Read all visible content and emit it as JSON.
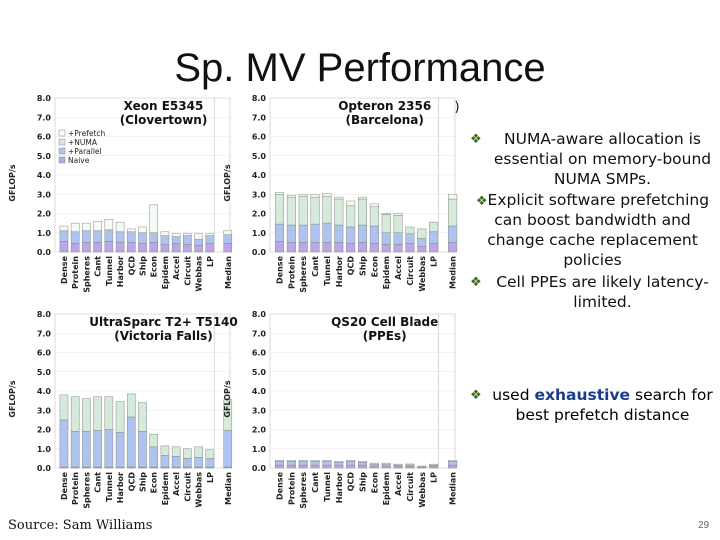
{
  "slide": {
    "title": "Sp. MV Performance",
    "subtitle_fragment": "ng)",
    "source": "Source: Sam Williams",
    "page_number": "29"
  },
  "bullets": {
    "b1": "NUMA-aware allocation is essential on memory-bound NUMA SMPs.",
    "b1_sub": "Explicit software prefetching can boost bandwidth and change cache replacement policies",
    "b2": "Cell PPEs are likely latency-limited.",
    "b3_pre": "used ",
    "b3_bold": "exhaustive",
    "b3_post": " search for best prefetch distance"
  },
  "colors": {
    "naive": "#b9a7e6",
    "parallel": "#aec4ee",
    "numa": "#d6eadb",
    "prefetch": "#f4fbf4",
    "bullet_mark": "#3d6b14",
    "exhaustive": "#1a3c8c"
  },
  "chart_data": [
    {
      "type": "bar",
      "stacked": true,
      "title": "Xeon E5345",
      "subtitle": "(Clovertown)",
      "ylabel": "GFLOP/s",
      "ylim": [
        0,
        8
      ],
      "yticks": [
        "0.0",
        "1.0",
        "2.0",
        "3.0",
        "4.0",
        "5.0",
        "6.0",
        "7.0",
        "8.0"
      ],
      "legend": [
        "+Prefetch",
        "+NUMA",
        "+Parallel",
        "Naive"
      ],
      "categories": [
        "Dense",
        "Protein",
        "Spheres",
        "Cant",
        "Tunnel",
        "Harbor",
        "QCD",
        "Ship",
        "Econ",
        "Epidem",
        "Accel",
        "Circuit",
        "Webbas",
        "LP",
        "Median"
      ],
      "series": [
        {
          "name": "Naive",
          "values": [
            0.55,
            0.45,
            0.5,
            0.5,
            0.55,
            0.5,
            0.5,
            0.45,
            0.5,
            0.4,
            0.45,
            0.4,
            0.35,
            0.45,
            0.45
          ]
        },
        {
          "name": "+Parallel",
          "values": [
            0.55,
            0.6,
            0.6,
            0.6,
            0.6,
            0.55,
            0.55,
            0.55,
            0.5,
            0.45,
            0.35,
            0.45,
            0.3,
            0.4,
            0.45
          ]
        },
        {
          "name": "+NUMA",
          "values": [
            0.0,
            0.0,
            0.0,
            0.0,
            0.0,
            0.0,
            0.0,
            0.0,
            0.0,
            0.0,
            0.0,
            0.0,
            0.0,
            0.0,
            0.0
          ]
        },
        {
          "name": "+Prefetch",
          "values": [
            0.25,
            0.45,
            0.4,
            0.5,
            0.55,
            0.5,
            0.15,
            0.3,
            1.45,
            0.2,
            0.15,
            0.1,
            0.3,
            0.1,
            0.2
          ]
        }
      ]
    },
    {
      "type": "bar",
      "stacked": true,
      "title": "Opteron 2356",
      "subtitle": "(Barcelona)",
      "ylabel": "GFLOP/s",
      "ylim": [
        0,
        8
      ],
      "yticks": [
        "0.0",
        "1.0",
        "2.0",
        "3.0",
        "4.0",
        "5.0",
        "6.0",
        "7.0",
        "8.0"
      ],
      "categories": [
        "Dense",
        "Protein",
        "Spheres",
        "Cant",
        "Tunnel",
        "Harbor",
        "QCD",
        "Ship",
        "Econ",
        "Epidem",
        "Accel",
        "Circuit",
        "Webbas",
        "LP",
        "Median"
      ],
      "series": [
        {
          "name": "Naive",
          "values": [
            0.55,
            0.5,
            0.5,
            0.5,
            0.5,
            0.5,
            0.45,
            0.5,
            0.45,
            0.4,
            0.4,
            0.45,
            0.3,
            0.45,
            0.5
          ]
        },
        {
          "name": "+Parallel",
          "values": [
            0.9,
            0.9,
            0.9,
            0.95,
            1.0,
            0.9,
            0.85,
            0.9,
            0.9,
            0.6,
            0.6,
            0.5,
            0.4,
            0.6,
            0.85
          ]
        },
        {
          "name": "+NUMA",
          "values": [
            1.55,
            1.45,
            1.5,
            1.4,
            1.4,
            1.35,
            1.1,
            1.35,
            1.0,
            0.95,
            0.9,
            0.35,
            0.5,
            0.5,
            1.4
          ]
        },
        {
          "name": "+Prefetch",
          "values": [
            0.1,
            0.1,
            0.1,
            0.15,
            0.15,
            0.1,
            0.25,
            0.1,
            0.15,
            0.05,
            0.1,
            0.0,
            0.0,
            0.0,
            0.25
          ]
        }
      ]
    },
    {
      "type": "bar",
      "stacked": true,
      "title": "UltraSparc T2+ T5140",
      "subtitle": "(Victoria Falls)",
      "ylabel": "GFLOP/s",
      "ylim": [
        0,
        8
      ],
      "yticks": [
        "0.0",
        "1.0",
        "2.0",
        "3.0",
        "4.0",
        "5.0",
        "6.0",
        "7.0",
        "8.0"
      ],
      "categories": [
        "Dense",
        "Protein",
        "Spheres",
        "Cant",
        "Tunnel",
        "Harbor",
        "QCD",
        "Ship",
        "Econ",
        "Epidem",
        "Accel",
        "Circuit",
        "Webbas",
        "LP",
        "Median"
      ],
      "series": [
        {
          "name": "Naive",
          "values": [
            0.05,
            0.05,
            0.05,
            0.05,
            0.05,
            0.05,
            0.05,
            0.05,
            0.05,
            0.05,
            0.05,
            0.05,
            0.05,
            0.05,
            0.05
          ]
        },
        {
          "name": "+Parallel",
          "values": [
            2.45,
            1.85,
            1.85,
            1.9,
            1.95,
            1.8,
            2.6,
            1.85,
            1.05,
            0.6,
            0.55,
            0.45,
            0.5,
            0.45,
            1.9
          ]
        },
        {
          "name": "+NUMA",
          "values": [
            1.3,
            1.8,
            1.7,
            1.75,
            1.7,
            1.6,
            1.2,
            1.5,
            0.65,
            0.5,
            0.5,
            0.5,
            0.55,
            0.45,
            1.6
          ]
        },
        {
          "name": "+Prefetch",
          "values": [
            0.0,
            0.0,
            0.0,
            0.0,
            0.0,
            0.0,
            0.0,
            0.0,
            0.0,
            0.0,
            0.0,
            0.0,
            0.0,
            0.0,
            0.0
          ]
        }
      ]
    },
    {
      "type": "bar",
      "stacked": true,
      "title": "QS20 Cell Blade",
      "subtitle": "(PPEs)",
      "ylabel": "GFLOP/s",
      "ylim": [
        0,
        8
      ],
      "yticks": [
        "0.0",
        "1.0",
        "2.0",
        "3.0",
        "4.0",
        "5.0",
        "6.0",
        "7.0",
        "8.0"
      ],
      "categories": [
        "Dense",
        "Protein",
        "Spheres",
        "Cant",
        "Tunnel",
        "Harbor",
        "QCD",
        "Ship",
        "Econ",
        "Epidem",
        "Accel",
        "Circuit",
        "Webbas",
        "LP",
        "Median"
      ],
      "series": [
        {
          "name": "Naive",
          "values": [
            0.15,
            0.15,
            0.15,
            0.15,
            0.15,
            0.15,
            0.15,
            0.15,
            0.1,
            0.1,
            0.1,
            0.08,
            0.05,
            0.1,
            0.15
          ]
        },
        {
          "name": "+Parallel",
          "values": [
            0.2,
            0.2,
            0.2,
            0.2,
            0.2,
            0.15,
            0.2,
            0.15,
            0.1,
            0.1,
            0.05,
            0.08,
            0.05,
            0.05,
            0.2
          ]
        },
        {
          "name": "+NUMA",
          "values": [
            0.0,
            0.0,
            0.0,
            0.0,
            0.0,
            0.0,
            0.0,
            0.0,
            0.0,
            0.0,
            0.0,
            0.0,
            0.0,
            0.0,
            0.0
          ]
        },
        {
          "name": "+Prefetch",
          "values": [
            0.05,
            0.05,
            0.05,
            0.05,
            0.05,
            0.05,
            0.05,
            0.05,
            0.05,
            0.05,
            0.05,
            0.05,
            0.0,
            0.05,
            0.05
          ]
        }
      ]
    }
  ]
}
